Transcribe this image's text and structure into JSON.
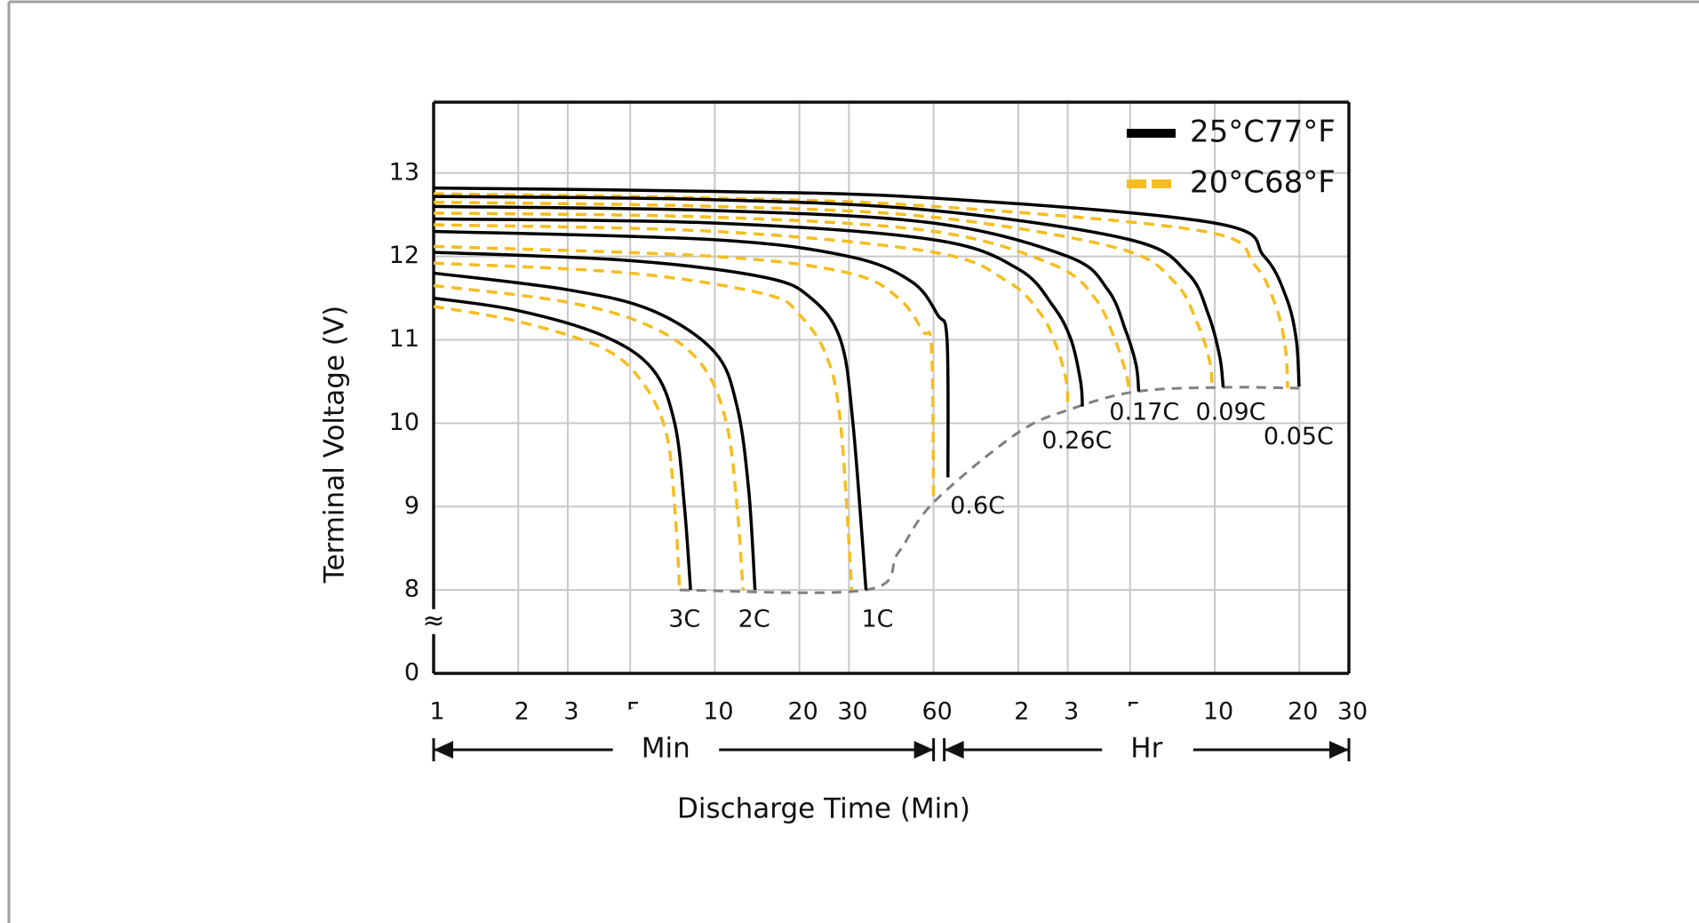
{
  "chart_data": {
    "type": "line",
    "xscale": "log",
    "x_label": "Discharge Time (Min)",
    "y_label": "Terminal Voltage (V)",
    "xlim": [
      1,
      1800
    ],
    "ylim": [
      0,
      13.85
    ],
    "xticks": [
      1,
      2,
      3,
      5,
      10,
      20,
      30,
      60,
      {
        "value": 120,
        "label": "2"
      },
      {
        "value": 180,
        "label": "3"
      },
      {
        "value": 300,
        "label": "5"
      },
      {
        "value": 600,
        "label": "10"
      },
      {
        "value": 1200,
        "label": "20"
      },
      {
        "value": 1800,
        "label": "30"
      }
    ],
    "yticks": [
      0,
      8,
      9,
      10,
      11,
      12,
      13
    ],
    "axis_break_symbol": "≈",
    "grid": true,
    "legend": "upper right",
    "x_ranges": [
      {
        "label": "Min",
        "from": 1,
        "to": 60
      },
      {
        "label": "Hr",
        "from": 60,
        "to": 1800
      }
    ],
    "series": [
      {
        "name": "25°C77°F",
        "color": "#000000",
        "dashed": false,
        "curves": [
          {
            "x": [
              1,
              2,
              4,
              6,
              7.2,
              7.8,
              8.2
            ],
            "values": [
              11.5,
              11.35,
              11.05,
              10.65,
              10.0,
              9.0,
              8.0
            ]
          },
          {
            "x": [
              1,
              3,
              6,
              10,
              12,
              13.2,
              13.9
            ],
            "values": [
              11.8,
              11.6,
              11.35,
              10.85,
              10.2,
              9.2,
              8.0
            ]
          },
          {
            "x": [
              1,
              5,
              15,
              22,
              28,
              31,
              34.5
            ],
            "values": [
              12.05,
              11.95,
              11.75,
              11.5,
              11.0,
              10.0,
              8.0
            ]
          },
          {
            "x": [
              1,
              10,
              30,
              50,
              62,
              67,
              67.5
            ],
            "values": [
              12.3,
              12.2,
              12.0,
              11.7,
              11.3,
              11.0,
              9.35
            ]
          },
          {
            "x": [
              1,
              10,
              60,
              120,
              160,
              185,
              200,
              203
            ],
            "values": [
              12.45,
              12.4,
              12.2,
              11.85,
              11.4,
              11.0,
              10.5,
              10.2
            ]
          },
          {
            "x": [
              1,
              10,
              60,
              180,
              250,
              290,
              315,
              322
            ],
            "values": [
              12.6,
              12.55,
              12.4,
              12.0,
              11.6,
              11.1,
              10.7,
              10.38
            ]
          },
          {
            "x": [
              1,
              10,
              60,
              300,
              480,
              570,
              625,
              643
            ],
            "values": [
              12.72,
              12.68,
              12.55,
              12.2,
              11.8,
              11.3,
              10.8,
              10.43
            ]
          },
          {
            "x": [
              1,
              10,
              60,
              600,
              900,
              1080,
              1170,
              1197
            ],
            "values": [
              12.82,
              12.78,
              12.7,
              12.4,
              12.0,
              11.5,
              11.0,
              10.44
            ]
          }
        ]
      },
      {
        "name": "20°C68°F",
        "color": "#f5bd1f",
        "dashed": true,
        "curves": [
          {
            "x": [
              1,
              2,
              4,
              5.5,
              6.7,
              7.2,
              7.5
            ],
            "values": [
              11.4,
              11.22,
              10.9,
              10.5,
              9.9,
              9.0,
              8.0
            ]
          },
          {
            "x": [
              1,
              3,
              6,
              9,
              11,
              12,
              12.6
            ],
            "values": [
              11.65,
              11.45,
              11.15,
              10.7,
              10.0,
              9.0,
              8.0
            ]
          },
          {
            "x": [
              1,
              5,
              15,
              20,
              25,
              28,
              30.7
            ],
            "values": [
              11.92,
              11.8,
              11.55,
              11.3,
              10.8,
              10.0,
              8.0
            ]
          },
          {
            "x": [
              1,
              10,
              30,
              45,
              55,
              59,
              60
            ],
            "values": [
              12.12,
              12.0,
              11.8,
              11.5,
              11.1,
              10.9,
              9.05
            ]
          },
          {
            "x": [
              1,
              10,
              60,
              110,
              145,
              165,
              178,
              180
            ],
            "values": [
              12.38,
              12.3,
              12.05,
              11.7,
              11.3,
              10.9,
              10.5,
              10.2
            ]
          },
          {
            "x": [
              1,
              10,
              60,
              160,
              225,
              265,
              290,
              298
            ],
            "values": [
              12.52,
              12.47,
              12.3,
              11.9,
              11.5,
              11.0,
              10.6,
              10.38
            ]
          },
          {
            "x": [
              1,
              10,
              60,
              270,
              430,
              520,
              575,
              587
            ],
            "values": [
              12.65,
              12.6,
              12.47,
              12.1,
              11.7,
              11.2,
              10.75,
              10.43
            ]
          },
          {
            "x": [
              1,
              10,
              60,
              550,
              830,
              990,
              1070,
              1090
            ],
            "values": [
              12.75,
              12.7,
              12.6,
              12.3,
              11.9,
              11.4,
              10.9,
              10.42
            ]
          }
        ]
      }
    ],
    "end_voltage_line": {
      "color": "#808080",
      "x": [
        7.5,
        34.5,
        45,
        60,
        119,
        185,
        316,
        643,
        1197
      ],
      "values": [
        8.0,
        8.0,
        8.45,
        9.05,
        9.88,
        10.17,
        10.38,
        10.43,
        10.42
      ]
    },
    "annotations": [
      {
        "text": "3C",
        "x": 7.8,
        "y": 5.1
      },
      {
        "text": "2C",
        "x": 13.8,
        "y": 5.1
      },
      {
        "text": "1C",
        "x": 37.9,
        "y": 5.1
      },
      {
        "text": "0.6C",
        "x": 86,
        "y": 9.0
      },
      {
        "text": "0.26C",
        "x": 194,
        "y": 9.78
      },
      {
        "text": "0.17C",
        "x": 337,
        "y": 10.12
      },
      {
        "text": "0.09C",
        "x": 684,
        "y": 10.12
      },
      {
        "text": "0.05C",
        "x": 1192,
        "y": 9.83
      }
    ]
  }
}
